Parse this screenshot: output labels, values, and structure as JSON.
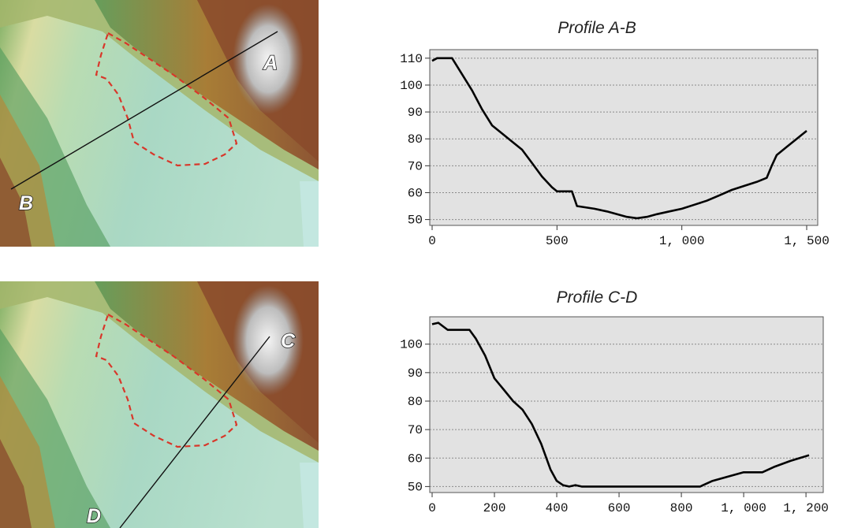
{
  "maps": [
    {
      "label_a": "A",
      "label_b": "B",
      "line": [
        [
          352,
          40
        ],
        [
          14,
          240
        ]
      ],
      "colors": {
        "low": "#a9d8c4",
        "mid": "#5ea463",
        "high": "#8a4a2c",
        "peak": "#f2f2f2",
        "boundary": "#d8372a"
      }
    },
    {
      "label_a": "C",
      "label_b": "D",
      "line": [
        [
          342,
          70
        ],
        [
          152,
          313
        ]
      ],
      "colors": {
        "low": "#a9d8c4",
        "mid": "#5ea463",
        "high": "#8a4a2c",
        "peak": "#f2f2f2",
        "boundary": "#d8372a"
      }
    }
  ],
  "chart_data": [
    {
      "type": "line",
      "title": "Profile A-B",
      "xlim": [
        0,
        1500
      ],
      "ylim": [
        49,
        112
      ],
      "xticks": [
        0,
        500,
        1000,
        1500
      ],
      "xtick_labels": [
        "0",
        "500",
        "1, 000",
        "1, 500"
      ],
      "yticks": [
        50,
        60,
        70,
        80,
        90,
        100,
        110
      ],
      "ytick_labels": [
        "50",
        "60",
        "70",
        "80",
        "90",
        "100",
        "110"
      ],
      "grid": "horizontal-dashed",
      "series": [
        {
          "x": [
            0,
            20,
            80,
            120,
            160,
            200,
            240,
            280,
            320,
            360,
            400,
            440,
            480,
            500,
            540,
            560,
            580,
            650,
            700,
            780,
            820,
            860,
            900,
            950,
            1000,
            1050,
            1100,
            1150,
            1200,
            1250,
            1300,
            1340,
            1360,
            1380,
            1420,
            1460,
            1500
          ],
          "y": [
            109,
            110,
            110,
            104,
            98,
            91,
            85,
            82,
            79,
            76,
            71,
            66,
            62,
            60.5,
            60.5,
            60.5,
            55,
            54,
            53,
            51,
            50.5,
            51,
            52,
            53,
            54,
            55.5,
            57,
            59,
            61,
            62.5,
            64,
            65.5,
            70,
            74,
            77,
            80,
            83
          ]
        }
      ]
    },
    {
      "type": "line",
      "title": "Profile C-D",
      "xlim": [
        0,
        1220
      ],
      "ylim": [
        49,
        108.5
      ],
      "xticks": [
        0,
        200,
        400,
        600,
        800,
        1000,
        1200
      ],
      "xtick_labels": [
        "0",
        "200",
        "400",
        "600",
        "800",
        "1, 000",
        "1, 200"
      ],
      "yticks": [
        50,
        60,
        70,
        80,
        90,
        100
      ],
      "ytick_labels": [
        "50",
        "60",
        "70",
        "80",
        "90",
        "100"
      ],
      "grid": "horizontal-dashed",
      "series": [
        {
          "x": [
            0,
            20,
            50,
            80,
            120,
            140,
            170,
            200,
            230,
            260,
            290,
            320,
            350,
            380,
            400,
            420,
            440,
            460,
            480,
            600,
            700,
            800,
            860,
            900,
            950,
            1000,
            1060,
            1100,
            1150,
            1210
          ],
          "y": [
            107,
            107.5,
            105,
            105,
            105,
            102,
            96,
            88,
            84,
            80,
            77,
            72,
            65,
            56,
            52,
            50.5,
            50,
            50.5,
            50,
            50,
            50,
            50,
            50,
            52,
            53.5,
            55,
            55,
            57,
            59,
            61
          ]
        }
      ]
    }
  ]
}
